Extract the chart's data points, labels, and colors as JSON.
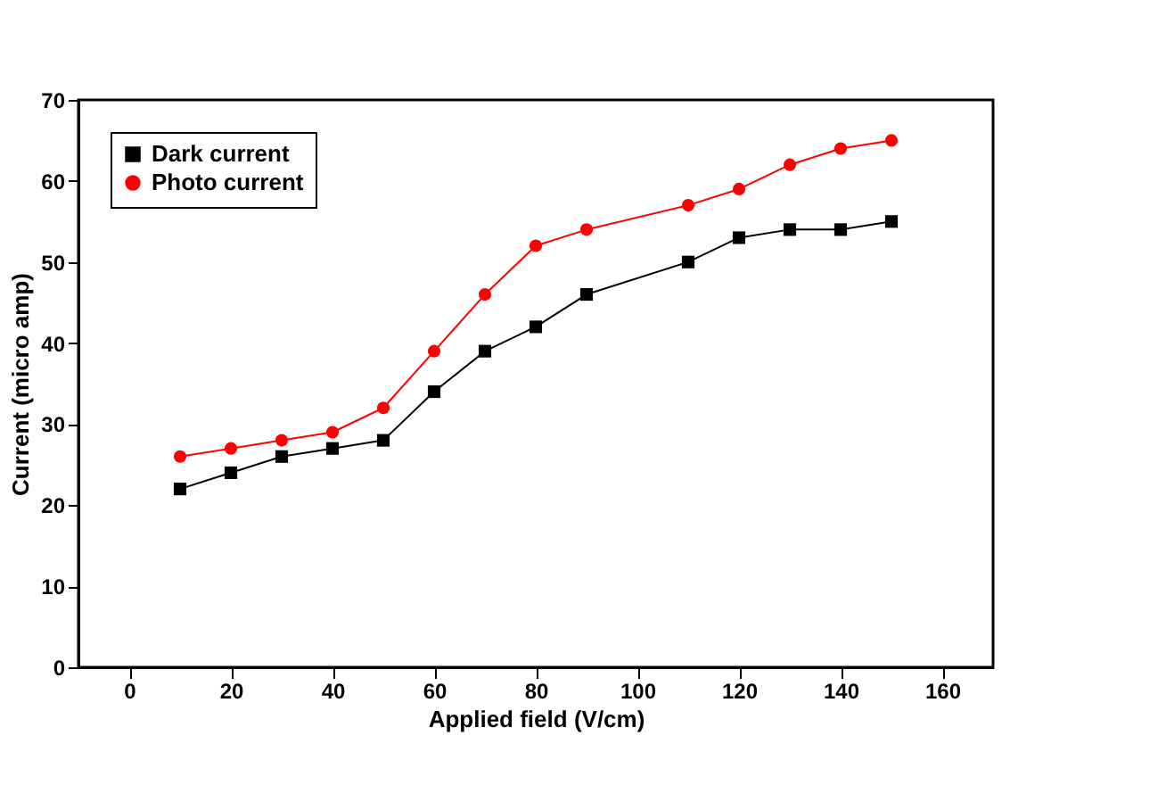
{
  "chart_data": {
    "type": "line",
    "xlabel": "Applied field (V/cm)",
    "ylabel": "Current (micro amp)",
    "x": [
      10,
      20,
      30,
      40,
      50,
      60,
      70,
      80,
      90,
      110,
      120,
      130,
      140,
      150
    ],
    "series": [
      {
        "name": "Dark current",
        "color": "#000000",
        "marker": "square",
        "values": [
          22,
          24,
          26,
          27,
          28,
          34,
          39,
          42,
          46,
          50,
          53,
          54,
          54,
          55
        ]
      },
      {
        "name": "Photo current",
        "color": "#ff0000",
        "marker": "circle",
        "values": [
          26,
          27,
          28,
          29,
          32,
          39,
          46,
          52,
          54,
          57,
          59,
          62,
          64,
          65
        ]
      }
    ],
    "xlim": [
      -10,
      170
    ],
    "xticks": [
      0,
      20,
      40,
      60,
      80,
      100,
      120,
      140,
      160
    ],
    "ylim": [
      0,
      70
    ],
    "yticks": [
      0,
      10,
      20,
      30,
      40,
      50,
      60,
      70
    ],
    "legend": "top left",
    "grid": false,
    "line_style": "solid"
  }
}
